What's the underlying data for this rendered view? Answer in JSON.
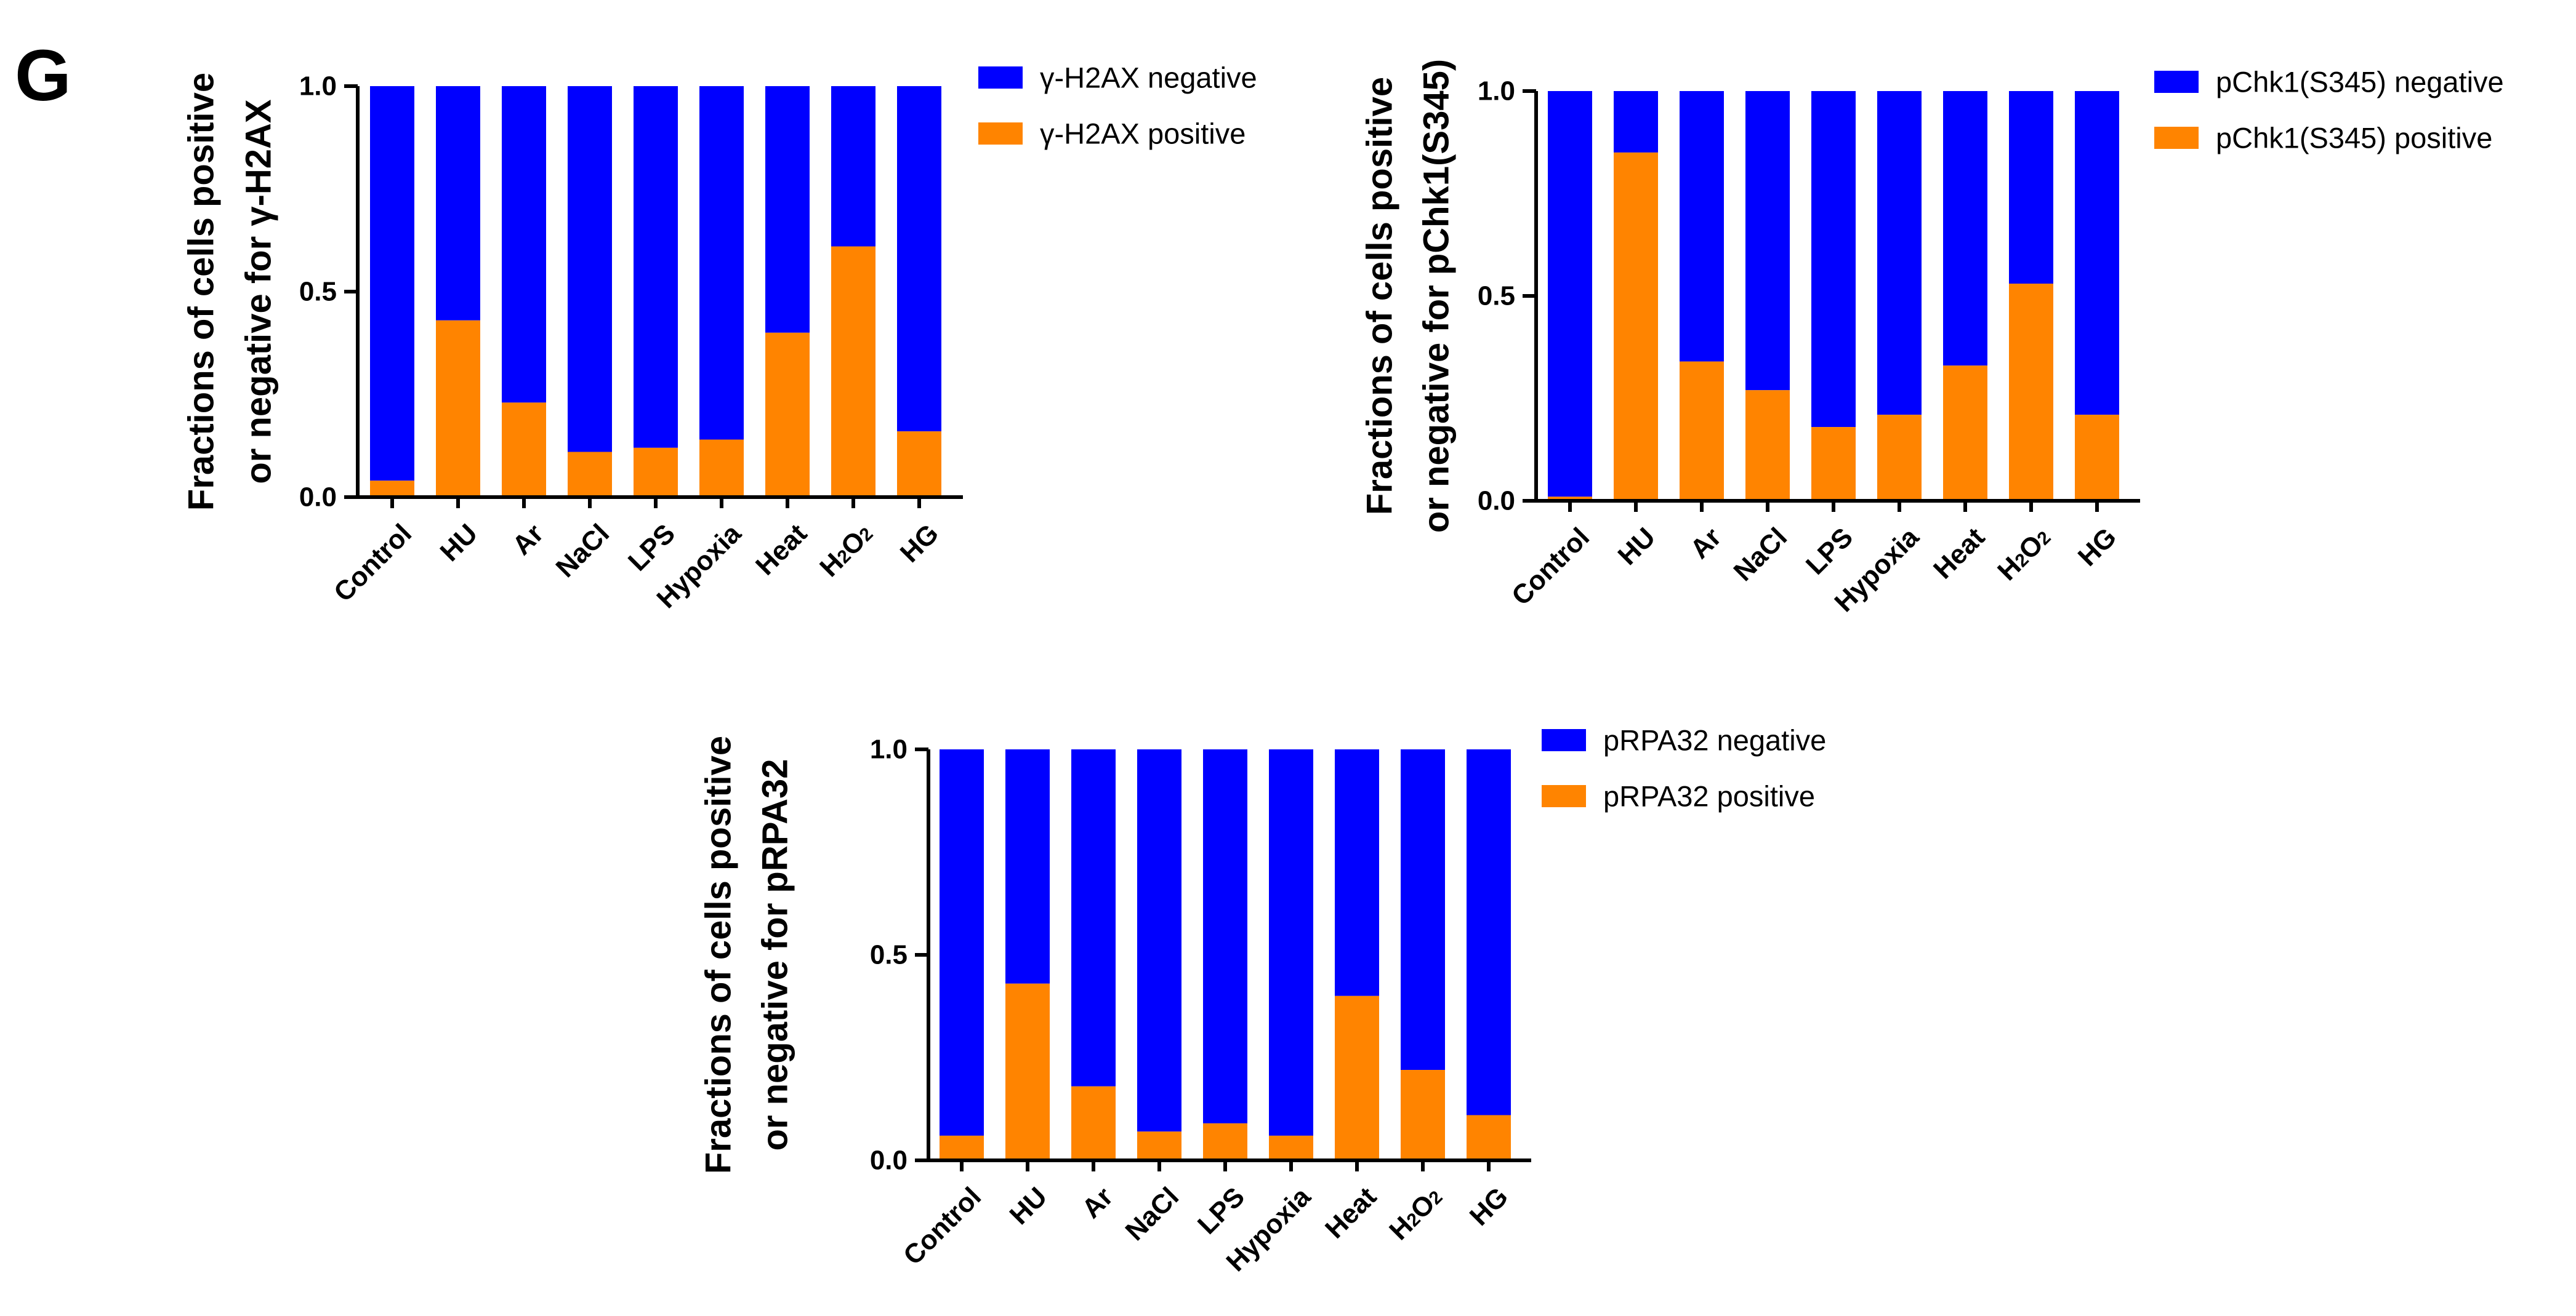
{
  "panel_label": "G",
  "colors": {
    "negative": "#0000ff",
    "positive": "#ff8400",
    "axis": "#000000"
  },
  "chart_data": [
    {
      "type": "bar",
      "stacked": true,
      "categories": [
        "Control",
        "HU",
        "Ar",
        "NaCl",
        "LPS",
        "Hypoxia",
        "Heat",
        "H2O2",
        "HG"
      ],
      "ylabel_line1": "Fractions of cells positive",
      "ylabel_line2": "or negative for γ-H2AX",
      "ylim": [
        0,
        1.0
      ],
      "yticks": [
        "0.0",
        "0.5",
        "1.0"
      ],
      "legend_position": "top-right",
      "series": [
        {
          "name": "γ-H2AX negative",
          "color": "#0000ff",
          "values": [
            0.96,
            0.57,
            0.77,
            0.89,
            0.88,
            0.86,
            0.6,
            0.39,
            0.84
          ]
        },
        {
          "name": "γ-H2AX positive",
          "color": "#ff8400",
          "values": [
            0.04,
            0.43,
            0.23,
            0.11,
            0.12,
            0.14,
            0.4,
            0.61,
            0.16
          ]
        }
      ]
    },
    {
      "type": "bar",
      "stacked": true,
      "categories": [
        "Control",
        "HU",
        "Ar",
        "NaCl",
        "LPS",
        "Hypoxia",
        "Heat",
        "H2O2",
        "HG"
      ],
      "ylabel_line1": "Fractions of cells positive",
      "ylabel_line2": "or negative for pChk1(S345)",
      "ylim": [
        0,
        1.0
      ],
      "yticks": [
        "0.0",
        "0.5",
        "1.0"
      ],
      "legend_position": "top-right",
      "series": [
        {
          "name": "pChk1(S345) negative",
          "color": "#0000ff",
          "values": [
            0.99,
            0.15,
            0.66,
            0.73,
            0.82,
            0.79,
            0.67,
            0.47,
            0.79
          ]
        },
        {
          "name": "pChk1(S345) positive",
          "color": "#ff8400",
          "values": [
            0.01,
            0.85,
            0.34,
            0.27,
            0.18,
            0.21,
            0.33,
            0.53,
            0.21
          ]
        }
      ]
    },
    {
      "type": "bar",
      "stacked": true,
      "categories": [
        "Control",
        "HU",
        "Ar",
        "NaCl",
        "LPS",
        "Hypoxia",
        "Heat",
        "H2O2",
        "HG"
      ],
      "ylabel_line1": "Fractions of cells positive",
      "ylabel_line2": "or negative for pRPA32",
      "ylim": [
        0,
        1.0
      ],
      "yticks": [
        "0.0",
        "0.5",
        "1.0"
      ],
      "legend_position": "top-right",
      "series": [
        {
          "name": "pRPA32 negative",
          "color": "#0000ff",
          "values": [
            0.94,
            0.57,
            0.82,
            0.93,
            0.91,
            0.94,
            0.6,
            0.78,
            0.89
          ]
        },
        {
          "name": "pRPA32 positive",
          "color": "#ff8400",
          "values": [
            0.06,
            0.43,
            0.18,
            0.07,
            0.09,
            0.06,
            0.4,
            0.22,
            0.11
          ]
        }
      ]
    }
  ]
}
